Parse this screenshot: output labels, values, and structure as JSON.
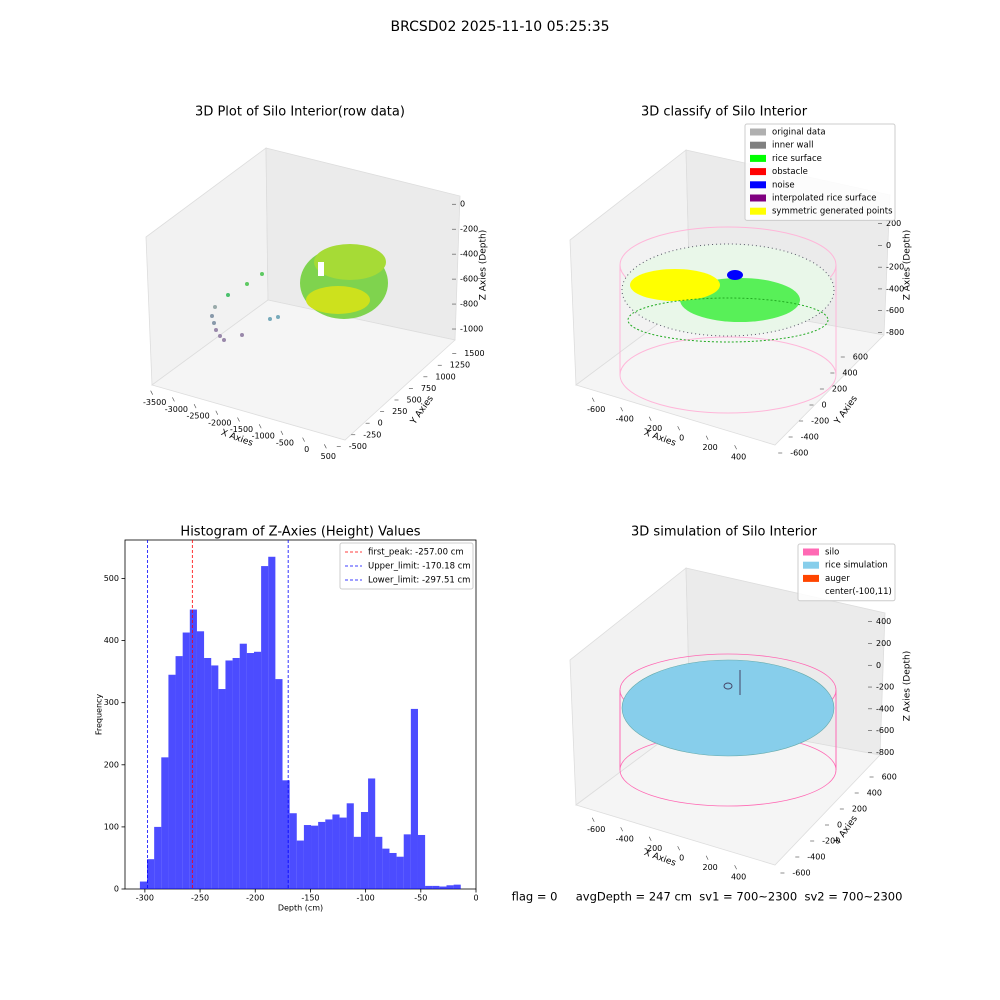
{
  "title": "BRCSD02 2025-11-10 05:25:35",
  "footer": "flag = 0     avgDepth = 247 cm  sv1 = 700~2300  sv2 = 700~2300",
  "chart_data": [
    {
      "type": "scatter3d",
      "title": "3D Plot of Silo Interior(row data)",
      "xlabel": "X Axies",
      "ylabel": "Y Axies",
      "zlabel": "Z Axies (Depth)",
      "xlim": [
        -3700,
        700
      ],
      "xticks": [
        -3500,
        -3000,
        -2500,
        -2000,
        -1500,
        -1000,
        -500,
        0,
        500
      ],
      "ylim": [
        -600,
        1600
      ],
      "yticks": [
        -500,
        -250,
        0,
        250,
        500,
        750,
        1000,
        1250,
        1500
      ],
      "zlim": [
        -1080,
        50
      ],
      "zticks": [
        0,
        -200,
        -400,
        -600,
        -800,
        -1000
      ]
    },
    {
      "type": "scatter3d",
      "title": "3D classify of Silo Interior",
      "xlabel": "X Axies",
      "ylabel": "Y Axies",
      "zlabel": "Z Axies (Depth)",
      "xlim": [
        -700,
        480
      ],
      "xticks": [
        -600,
        -400,
        -200,
        0,
        200,
        400
      ],
      "ylim": [
        -700,
        700
      ],
      "yticks": [
        -600,
        -400,
        -200,
        0,
        200,
        400,
        600
      ],
      "zlim": [
        -870,
        280
      ],
      "zticks": [
        200,
        0,
        -200,
        -400,
        -600,
        -800
      ],
      "legend": [
        {
          "name": "original data",
          "color": "#b0b0b0"
        },
        {
          "name": "inner wall",
          "color": "#808080"
        },
        {
          "name": "rice surface",
          "color": "#00ff00"
        },
        {
          "name": "obstacle",
          "color": "#ff0000"
        },
        {
          "name": "noise",
          "color": "#0000ff"
        },
        {
          "name": "interpolated rice surface",
          "color": "#800080"
        },
        {
          "name": "symmetric generated points",
          "color": "#ffff00"
        }
      ]
    },
    {
      "type": "histogram",
      "title": "Histogram of Z-Axies (Height) Values",
      "xlabel": "Depth (cm)",
      "ylabel": "Frequency",
      "color": "#0000ff",
      "alpha": 0.7,
      "bins": [
        -304.5,
        -298.04,
        -291.58,
        -285.12,
        -278.66,
        -272.2,
        -265.74,
        -259.28,
        -252.82,
        -246.36,
        -239.9,
        -233.44,
        -226.98,
        -220.52,
        -214.06,
        -207.6,
        -201.14,
        -194.68,
        -188.22,
        -181.76,
        -175.3,
        -168.84,
        -162.38,
        -155.92,
        -149.46,
        -143.0,
        -136.54,
        -130.08,
        -123.62,
        -117.16,
        -110.7,
        -104.24,
        -97.78,
        -91.32,
        -84.86,
        -78.4,
        -71.94,
        -65.48,
        -59.02,
        -52.56,
        -46.1,
        -39.64,
        -33.18,
        -26.72,
        -20.26,
        -13.8
      ],
      "values": [
        12,
        48,
        100,
        212,
        345,
        375,
        413,
        450,
        415,
        372,
        360,
        322,
        368,
        372,
        395,
        380,
        382,
        520,
        535,
        338,
        175,
        122,
        78,
        103,
        102,
        108,
        112,
        120,
        115,
        138,
        84,
        124,
        178,
        84,
        65,
        58,
        52,
        88,
        290,
        87,
        5,
        5,
        4,
        6,
        7
      ],
      "xlim": [
        -318,
        0
      ],
      "xticks": [
        -300,
        -250,
        -200,
        -150,
        -100,
        -50,
        0
      ],
      "ylim": [
        0,
        562
      ],
      "yticks": [
        0,
        100,
        200,
        300,
        400,
        500
      ],
      "lines": [
        {
          "label": "first_peak: -257.00 cm",
          "value": -257.0,
          "color": "#ff0000"
        },
        {
          "label": "Upper_limit: -170.18 cm",
          "value": -170.18,
          "color": "#0000ff"
        },
        {
          "label": "Lower_limit: -297.51 cm",
          "value": -297.51,
          "color": "#0000ff"
        }
      ],
      "legend_position": "upper right"
    },
    {
      "type": "scatter3d",
      "title": "3D simulation of Silo Interior",
      "xlabel": "X Axies",
      "ylabel": "Y Axies",
      "zlabel": "Z Axies (Depth)",
      "xlim": [
        -700,
        480
      ],
      "xticks": [
        -600,
        -400,
        -200,
        0,
        200,
        400
      ],
      "ylim": [
        -700,
        700
      ],
      "yticks": [
        -600,
        -400,
        -200,
        0,
        200,
        400,
        600
      ],
      "zlim": [
        -870,
        480
      ],
      "zticks": [
        400,
        200,
        0,
        -200,
        -400,
        -600,
        -800
      ],
      "legend": [
        {
          "name": "silo",
          "color": "#ff69b4"
        },
        {
          "name": "rice simulation",
          "color": "#87ceeb"
        },
        {
          "name": "auger",
          "color": "#ff4500"
        },
        {
          "name": "center(-100,11)",
          "color": null
        }
      ]
    }
  ]
}
